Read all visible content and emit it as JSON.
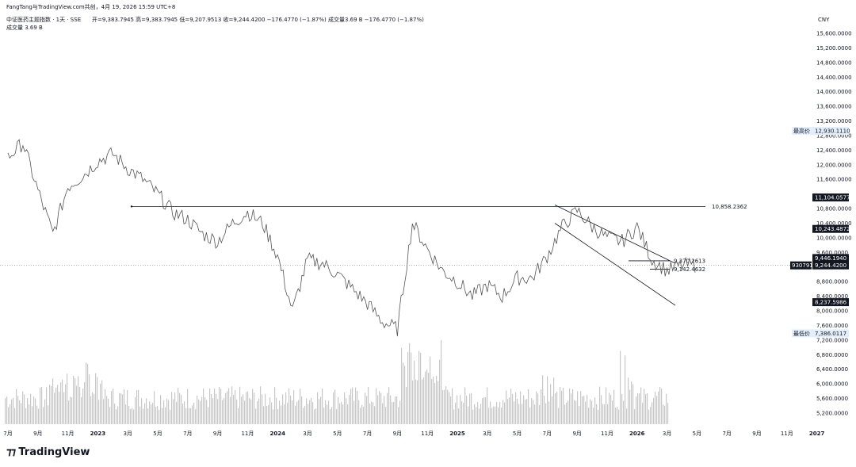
{
  "header": {
    "attribution": "FangTang与TradingView.com共创，4月 19, 2026 15:59 UTC+8",
    "symbol": "中证医药主题指数 · 1天 · SSE",
    "ohlc": "开=9,383.7945  高=9,383.7945  低=9,207.9513  收=9,244.4200  −176.4770 (−1.87%)  成交量3.69 B  −176.4770 (−1.87%)",
    "volume_line": "成交量  3.69 B"
  },
  "currency": "CNY",
  "brand": "TradingView",
  "colors": {
    "price": "#555555",
    "volume": "#c8c8c8",
    "line": "#131722",
    "label_bg": "#131722",
    "label_fg": "#ffffff",
    "marker_bg": "#e3eefa"
  },
  "chart_data": {
    "type": "line",
    "title": "中证医药主题指数 · 1天 · SSE",
    "y_ticks": [
      "15,600.0000",
      "15,200.0000",
      "14,800.0000",
      "14,400.0000",
      "14,000.0000",
      "13,600.0000",
      "13,200.0000",
      "12,800.0000",
      "12,400.0000",
      "12,000.0000",
      "11,600.0000",
      "10,800.0000",
      "10,400.0000",
      "10,000.0000",
      "9,600.0000",
      "8,800.0000",
      "8,400.0000",
      "8,000.0000",
      "7,600.0000",
      "7,200.0000",
      "6,800.0000",
      "6,400.0000",
      "6,000.0000",
      "5,600.0000",
      "5,200.0000"
    ],
    "x_ticks": [
      {
        "label": "7月",
        "bold": false
      },
      {
        "label": "9月",
        "bold": false
      },
      {
        "label": "11月",
        "bold": false
      },
      {
        "label": "2023",
        "bold": true
      },
      {
        "label": "3月",
        "bold": false
      },
      {
        "label": "5月",
        "bold": false
      },
      {
        "label": "7月",
        "bold": false
      },
      {
        "label": "9月",
        "bold": false
      },
      {
        "label": "11月",
        "bold": false
      },
      {
        "label": "2024",
        "bold": true
      },
      {
        "label": "3月",
        "bold": false
      },
      {
        "label": "5月",
        "bold": false
      },
      {
        "label": "7月",
        "bold": false
      },
      {
        "label": "9月",
        "bold": false
      },
      {
        "label": "11月",
        "bold": false
      },
      {
        "label": "2025",
        "bold": true
      },
      {
        "label": "3月",
        "bold": false
      },
      {
        "label": "5月",
        "bold": false
      },
      {
        "label": "7月",
        "bold": false
      },
      {
        "label": "9月",
        "bold": false
      },
      {
        "label": "11月",
        "bold": false
      },
      {
        "label": "2026",
        "bold": true
      },
      {
        "label": "3月",
        "bold": false
      },
      {
        "label": "5月",
        "bold": false
      },
      {
        "label": "7月",
        "bold": false
      },
      {
        "label": "9月",
        "bold": false
      },
      {
        "label": "11月",
        "bold": false
      },
      {
        "label": "2027",
        "bold": true
      }
    ],
    "series": [
      {
        "x": [
          "2022-07",
          "2022-08",
          "2022-09",
          "2022-10",
          "2022-11",
          "2022-12",
          "2023-01",
          "2023-02",
          "2023-03",
          "2023-04",
          "2023-05",
          "2023-06",
          "2023-07",
          "2023-08",
          "2023-09",
          "2023-10",
          "2023-11",
          "2023-12",
          "2024-01",
          "2024-02",
          "2024-03",
          "2024-04",
          "2024-05",
          "2024-06",
          "2024-07",
          "2024-08",
          "2024-09",
          "2024-10",
          "2024-11",
          "2024-12",
          "2025-01",
          "2025-02",
          "2025-03",
          "2025-04",
          "2025-05",
          "2025-06",
          "2025-07",
          "2025-08",
          "2025-09",
          "2025-10",
          "2025-11",
          "2025-12",
          "2026-01",
          "2026-02",
          "2026-03",
          "2026-04"
        ],
        "y": [
          12200,
          12600,
          11300,
          10100,
          11400,
          11700,
          12100,
          12300,
          11900,
          11600,
          11200,
          10700,
          10500,
          10100,
          9900,
          10400,
          10700,
          10400,
          9500,
          8000,
          9400,
          9300,
          9000,
          8600,
          8200,
          7700,
          7500,
          10400,
          9700,
          9100,
          8800,
          8400,
          8700,
          8400,
          8900,
          8900,
          9500,
          10300,
          10750,
          10300,
          10000,
          9900,
          10300,
          9400,
          9100,
          9244.42
        ]
      }
    ],
    "annotations": {
      "resistance": "10,858.2362",
      "channel_upper": "11,104.0577",
      "level_a": "10,243.4872",
      "level_b": "9,446.1940",
      "last_price": "9,244.4200",
      "countdown": "930791",
      "box_top": "9,370.2613",
      "box_bottom": "9,142.4632",
      "channel_lower": "8,237.5986",
      "high_label": "最高价",
      "high_value": "12,930.1110",
      "low_label": "最低价",
      "low_value": "7,386.0117"
    }
  }
}
